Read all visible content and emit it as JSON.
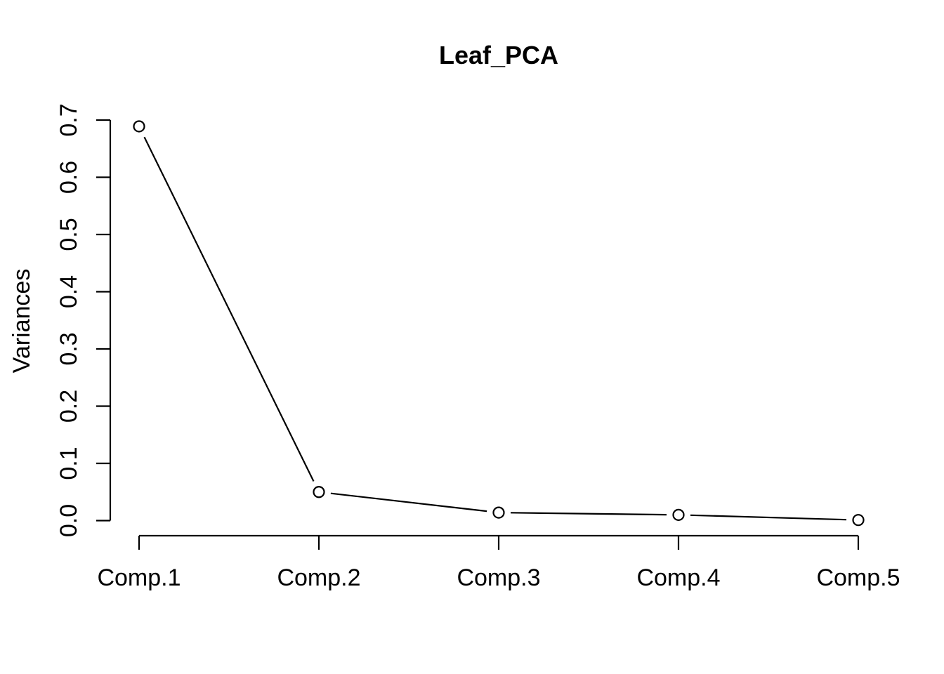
{
  "figure": {
    "background": "#ffffff",
    "foreground": "#000000"
  },
  "chart_data": {
    "type": "line",
    "style": "r-base-screeplot",
    "title": "Leaf_PCA",
    "xlabel": "",
    "ylabel": "Variances",
    "categories": [
      "Comp.1",
      "Comp.2",
      "Comp.3",
      "Comp.4",
      "Comp.5"
    ],
    "series": [
      {
        "name": "Variances",
        "values": [
          0.689,
          0.05,
          0.014,
          0.01,
          0.001
        ]
      }
    ],
    "ylim": [
      0.0,
      0.7
    ],
    "yticks": [
      0.0,
      0.1,
      0.2,
      0.3,
      0.4,
      0.5,
      0.6,
      0.7
    ],
    "ytick_labels": [
      "0.0",
      "0.1",
      "0.2",
      "0.3",
      "0.4",
      "0.5",
      "0.6",
      "0.7"
    ],
    "grid": false,
    "legend": "none",
    "marker": "open-circle",
    "line_color": "#000000",
    "marker_color": "#000000",
    "axis_color": "#000000"
  }
}
